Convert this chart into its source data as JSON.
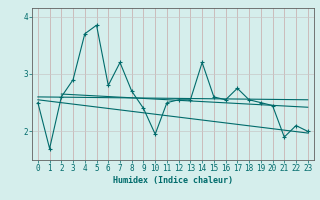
{
  "x": [
    0,
    1,
    2,
    3,
    4,
    5,
    6,
    7,
    8,
    9,
    10,
    11,
    12,
    13,
    14,
    15,
    16,
    17,
    18,
    19,
    20,
    21,
    22,
    23
  ],
  "y_main": [
    2.5,
    1.7,
    2.6,
    2.9,
    3.7,
    3.85,
    2.8,
    3.2,
    2.7,
    2.4,
    1.95,
    2.5,
    2.55,
    2.55,
    3.2,
    2.6,
    2.55,
    2.75,
    2.55,
    2.5,
    2.45,
    1.9,
    2.1,
    2.0
  ],
  "trend1_x": [
    0,
    23
  ],
  "trend1_y": [
    2.6,
    2.55
  ],
  "trend2_x": [
    0,
    23
  ],
  "trend2_y": [
    2.55,
    1.97
  ],
  "trend3_x": [
    2,
    23
  ],
  "trend3_y": [
    2.65,
    2.42
  ],
  "background_color": "#d5eeec",
  "line_color": "#006b6b",
  "grid_h_color": "#c8a8a8",
  "grid_v_color": "#c8c8c8",
  "xlabel": "Humidex (Indice chaleur)",
  "ylim": [
    1.5,
    4.15
  ],
  "xlim": [
    -0.5,
    23.5
  ],
  "yticks": [
    2,
    3,
    4
  ],
  "xticks": [
    0,
    1,
    2,
    3,
    4,
    5,
    6,
    7,
    8,
    9,
    10,
    11,
    12,
    13,
    14,
    15,
    16,
    17,
    18,
    19,
    20,
    21,
    22,
    23
  ]
}
